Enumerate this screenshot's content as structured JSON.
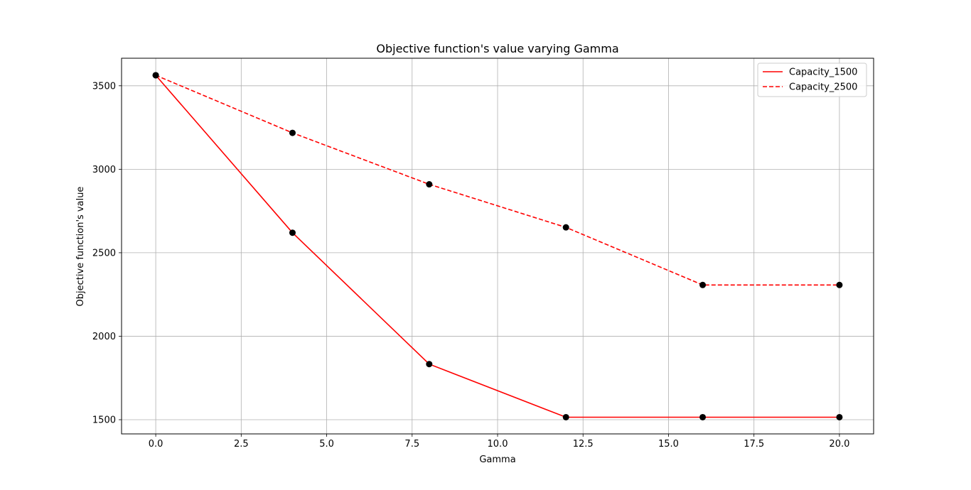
{
  "chart_data": {
    "type": "line",
    "title": "Objective function's value varying Gamma",
    "xlabel": "Gamma",
    "ylabel": "Objective function's value",
    "xlim": [
      -1.0,
      21.0
    ],
    "ylim": [
      1415,
      3665
    ],
    "grid": true,
    "legend_position": "top-right",
    "x_ticks": [
      0.0,
      2.5,
      5.0,
      7.5,
      10.0,
      12.5,
      15.0,
      17.5,
      20.0
    ],
    "x_tick_labels": [
      "0.0",
      "2.5",
      "5.0",
      "7.5",
      "10.0",
      "12.5",
      "15.0",
      "17.5",
      "20.0"
    ],
    "y_ticks": [
      1500,
      2000,
      2500,
      3000,
      3500
    ],
    "y_tick_labels": [
      "1500",
      "2000",
      "2500",
      "3000",
      "3500"
    ],
    "x": [
      0,
      4,
      8,
      12,
      16,
      20
    ],
    "series": [
      {
        "name": "Capacity_1500",
        "values": [
          3563,
          2620,
          1833,
          1515,
          1515,
          1515
        ],
        "color": "#ff0000",
        "line_style": "solid",
        "marker_color": "#000000"
      },
      {
        "name": "Capacity_2500",
        "values": [
          3563,
          3218,
          2910,
          2652,
          2307,
          2307
        ],
        "color": "#ff0000",
        "line_style": "dashed",
        "marker_color": "#000000"
      }
    ]
  }
}
